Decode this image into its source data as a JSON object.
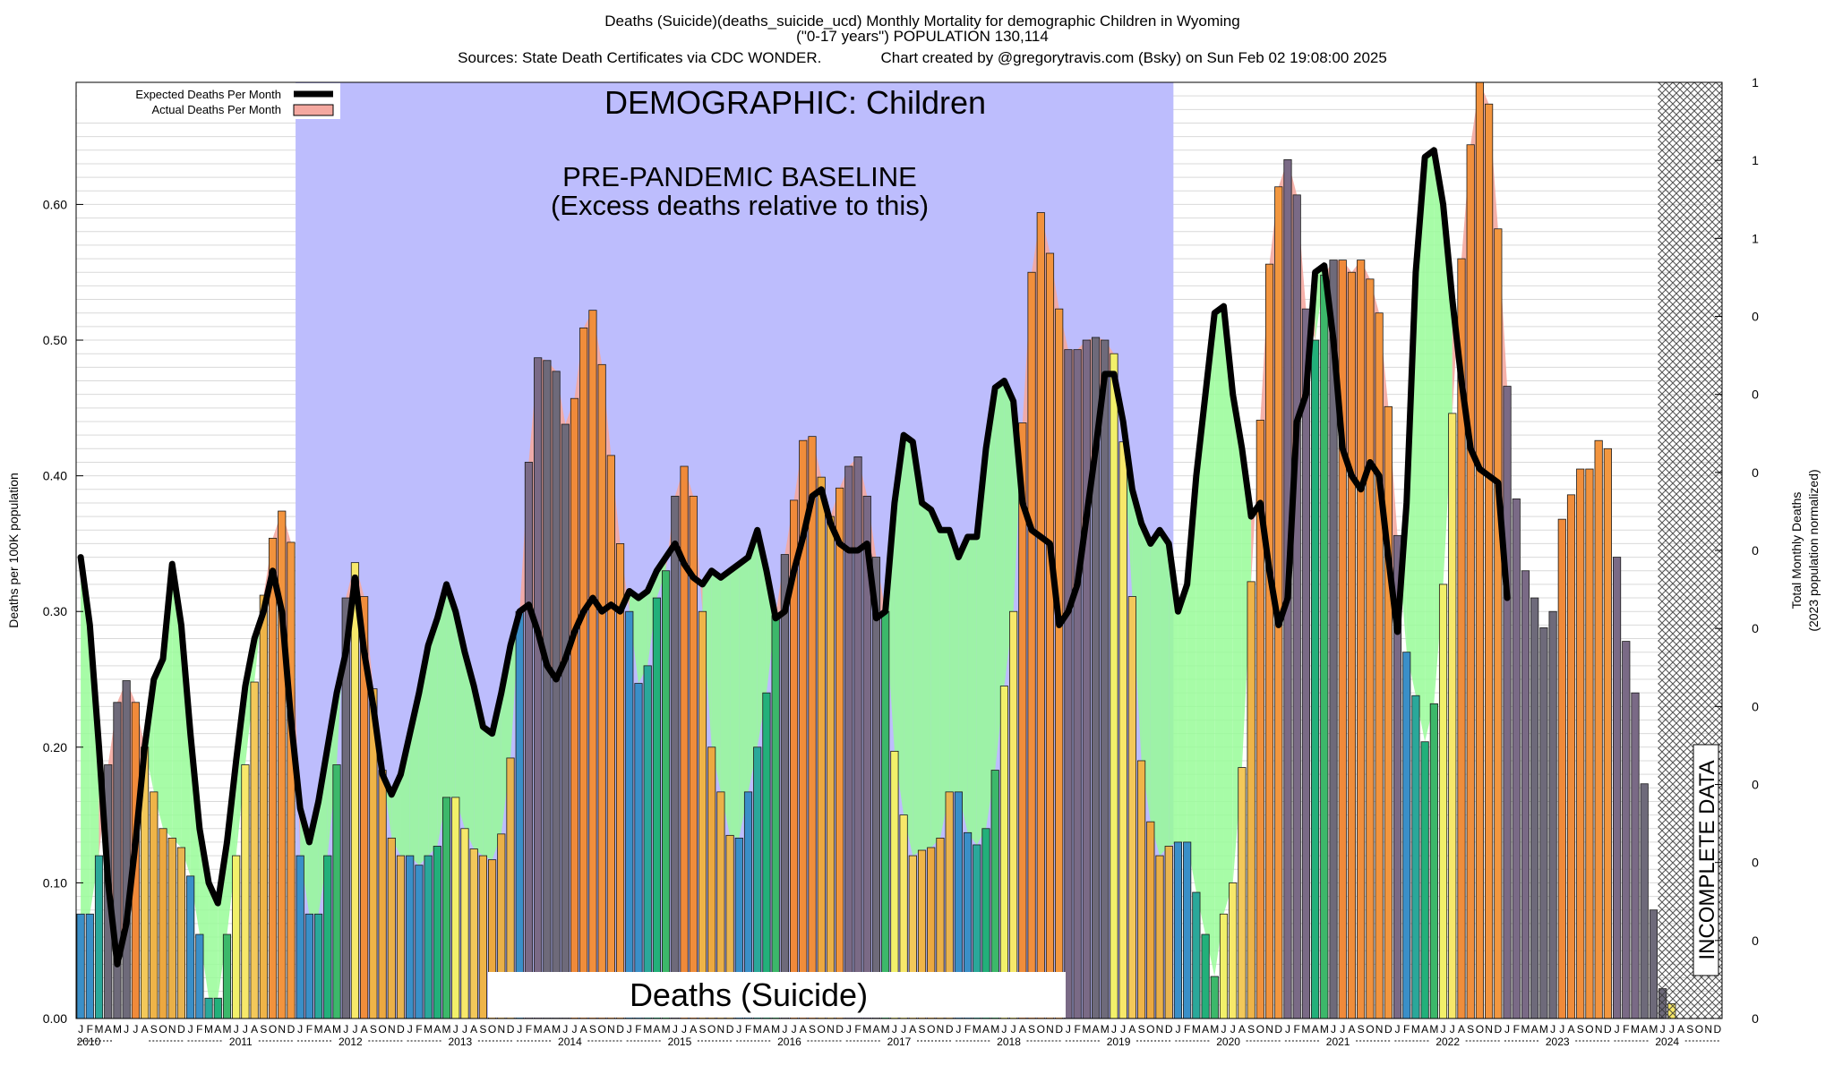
{
  "chart_data": {
    "type": "bar",
    "title_lines": [
      "Deaths (Suicide)(deaths_suicide_ucd) Monthly Mortality for demographic Children in Wyoming",
      "(\"0-17 years\") POPULATION 130,114",
      "Sources: State Death Certificates via CDC WONDER.              Chart created by @gregorytravis.com (Bsky) on Sun Feb 02 19:08:00 2025"
    ],
    "ylabel": "Deaths per 100K population",
    "y2label_lines": [
      "Total Monthly Deaths",
      "(2023 population normalized)"
    ],
    "ylim": [
      0,
      0.69
    ],
    "yticks": [
      "0.00",
      "0.10",
      "0.20",
      "0.30",
      "0.40",
      "0.50",
      "0.60"
    ],
    "y2ticks": [
      "0",
      "0",
      "0",
      "0",
      "0",
      "0",
      "0",
      "0",
      "0",
      "0",
      "1",
      "1",
      "1"
    ],
    "legend": {
      "position": "top-left",
      "expected_label": "Expected Deaths Per Month",
      "actual_label": "Actual Deaths Per Month"
    },
    "annotations": {
      "demographic": "DEMOGRAPHIC: Children",
      "baseline_1": "PRE-PANDEMIC BASELINE",
      "baseline_2": "(Excess deaths relative to this)",
      "cause": "Deaths (Suicide)",
      "incomplete": "INCOMPLETE DATA"
    },
    "baseline_period": {
      "start": "2012-01",
      "end": "2019-12"
    },
    "incomplete_period": {
      "start": "2024-06",
      "end": "2024-12"
    },
    "month_letters": [
      "J",
      "F",
      "M",
      "A",
      "M",
      "J",
      "J",
      "A",
      "S",
      "O",
      "N",
      "D"
    ],
    "years": [
      "2010",
      "2011",
      "2012",
      "2013",
      "2014",
      "2015",
      "2016",
      "2017",
      "2018",
      "2019",
      "2020",
      "2021",
      "2022",
      "2023",
      "2024"
    ],
    "series": [
      {
        "name": "Actual Deaths Per Month",
        "start": "2010-01",
        "values": [
          0.077,
          0.077,
          0.12,
          0.187,
          0.233,
          0.249,
          0.233,
          0.2,
          0.167,
          0.14,
          0.133,
          0.126,
          0.105,
          0.062,
          0.015,
          0.015,
          0.062,
          0.12,
          0.187,
          0.248,
          0.312,
          0.354,
          0.374,
          0.351,
          0.12,
          0.077,
          0.077,
          0.12,
          0.187,
          0.31,
          0.336,
          0.311,
          0.243,
          0.183,
          0.133,
          0.12,
          0.12,
          0.113,
          0.12,
          0.127,
          0.163,
          0.163,
          0.14,
          0.125,
          0.12,
          0.117,
          0.136,
          0.192,
          0.3,
          0.41,
          0.487,
          0.485,
          0.477,
          0.438,
          0.457,
          0.509,
          0.522,
          0.482,
          0.415,
          0.35,
          0.3,
          0.247,
          0.26,
          0.31,
          0.33,
          0.385,
          0.407,
          0.385,
          0.3,
          0.2,
          0.167,
          0.135,
          0.133,
          0.167,
          0.2,
          0.24,
          0.297,
          0.342,
          0.382,
          0.426,
          0.429,
          0.399,
          0.37,
          0.391,
          0.407,
          0.414,
          0.385,
          0.34,
          0.3,
          0.197,
          0.15,
          0.12,
          0.124,
          0.126,
          0.133,
          0.167,
          0.167,
          0.137,
          0.128,
          0.14,
          0.183,
          0.245,
          0.3,
          0.439,
          0.55,
          0.594,
          0.564,
          0.523,
          0.493,
          0.493,
          0.5,
          0.502,
          0.5,
          0.49,
          0.425,
          0.311,
          0.19,
          0.145,
          0.12,
          0.127,
          0.13,
          0.13,
          0.093,
          0.062,
          0.031,
          0.077,
          0.1,
          0.185,
          0.322,
          0.441,
          0.556,
          0.613,
          0.633,
          0.607,
          0.523,
          0.5,
          0.548,
          0.559,
          0.559,
          0.55,
          0.559,
          0.545,
          0.52,
          0.451,
          0.356,
          0.27,
          0.238,
          0.204,
          0.232,
          0.32,
          0.446,
          0.56,
          0.644,
          0.69,
          0.674,
          0.582,
          0.466,
          0.383,
          0.33,
          0.31,
          0.288,
          0.3,
          0.368,
          0.386,
          0.405,
          0.405,
          0.426,
          0.42,
          0.34,
          0.278,
          0.24,
          0.173,
          0.08,
          0.022,
          0.011,
          0.0
        ]
      },
      {
        "name": "Expected Deaths Per Month",
        "start": "2010-01",
        "values": [
          0.34,
          0.29,
          0.2,
          0.1,
          0.04,
          0.07,
          0.13,
          0.2,
          0.25,
          0.265,
          0.335,
          0.29,
          0.21,
          0.14,
          0.1,
          0.085,
          0.13,
          0.19,
          0.245,
          0.28,
          0.3,
          0.33,
          0.3,
          0.22,
          0.155,
          0.13,
          0.16,
          0.2,
          0.24,
          0.27,
          0.325,
          0.27,
          0.23,
          0.18,
          0.165,
          0.18,
          0.21,
          0.24,
          0.275,
          0.295,
          0.32,
          0.3,
          0.27,
          0.245,
          0.215,
          0.21,
          0.24,
          0.275,
          0.3,
          0.305,
          0.285,
          0.26,
          0.25,
          0.265,
          0.285,
          0.3,
          0.31,
          0.3,
          0.305,
          0.3,
          0.315,
          0.31,
          0.315,
          0.33,
          0.34,
          0.35,
          0.335,
          0.325,
          0.32,
          0.33,
          0.325,
          0.33,
          0.335,
          0.34,
          0.36,
          0.33,
          0.295,
          0.3,
          0.33,
          0.355,
          0.385,
          0.39,
          0.365,
          0.35,
          0.345,
          0.345,
          0.35,
          0.295,
          0.3,
          0.38,
          0.43,
          0.425,
          0.38,
          0.375,
          0.36,
          0.36,
          0.34,
          0.355,
          0.355,
          0.42,
          0.465,
          0.47,
          0.455,
          0.38,
          0.36,
          0.355,
          0.35,
          0.29,
          0.3,
          0.32,
          0.37,
          0.42,
          0.475,
          0.475,
          0.44,
          0.39,
          0.365,
          0.35,
          0.36,
          0.35,
          0.3,
          0.32,
          0.4,
          0.46,
          0.52,
          0.525,
          0.46,
          0.42,
          0.37,
          0.38,
          0.33,
          0.29,
          0.31,
          0.44,
          0.46,
          0.55,
          0.555,
          0.5,
          0.42,
          0.4,
          0.39,
          0.41,
          0.4,
          0.34,
          0.285,
          0.38,
          0.55,
          0.635,
          0.64,
          0.6,
          0.53,
          0.47,
          0.42,
          0.405,
          0.4,
          0.395,
          0.31
        ]
      }
    ]
  }
}
